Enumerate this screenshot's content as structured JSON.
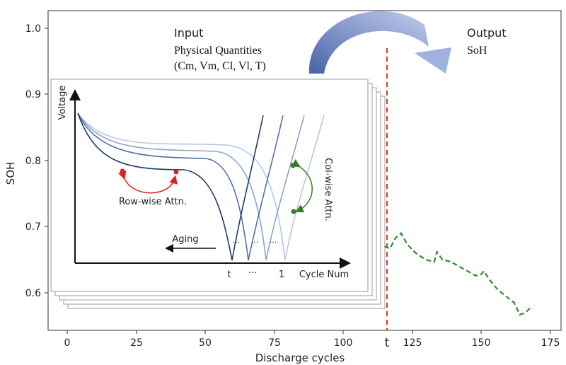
{
  "figure": {
    "outer_plot": {
      "ylabel": "SOH",
      "xlabel": "Discharge cycles",
      "y_ticks": [
        "0.6",
        "0.7",
        "0.8",
        "0.9",
        "1.0"
      ],
      "x_ticks": [
        "0",
        "25",
        "50",
        "75",
        "100",
        "125",
        "150",
        "175"
      ],
      "cutoff_label": "t"
    },
    "input_label": {
      "title": "Input",
      "line1": "Physical Quantities",
      "line2": "(Cm, Vm, Cl, Vl, T)"
    },
    "output_label": {
      "title": "Output",
      "line1": "SoH"
    },
    "inset": {
      "ylabel": "Voltage",
      "xlabel": "Cycle Num",
      "tick_t": "t",
      "tick_dots": "···",
      "tick_1": "1",
      "row_attn": "Row-wise Attn.",
      "col_attn": "Col-wise Attn.",
      "aging": "Aging",
      "curve_dots": "···"
    },
    "colors": {
      "prediction": "#2e8b2e",
      "cutoff": "#e03030",
      "row_attn": "#e02020",
      "col_attn": "#3a7a2a",
      "arrow": "#6f86c4"
    }
  },
  "chart_data": {
    "type": "line",
    "series": [
      {
        "x": [
          115,
          117,
          119,
          121,
          123,
          125,
          127,
          130,
          133,
          134,
          136,
          139,
          142,
          145,
          148,
          150,
          151,
          153,
          156,
          159,
          162,
          164,
          166,
          168
        ],
        "y": [
          0.67,
          0.667,
          0.683,
          0.69,
          0.675,
          0.665,
          0.658,
          0.65,
          0.647,
          0.662,
          0.65,
          0.647,
          0.64,
          0.633,
          0.626,
          0.628,
          0.633,
          0.62,
          0.605,
          0.595,
          0.585,
          0.567,
          0.57,
          0.578
        ]
      }
    ],
    "xlim": [
      -7,
      180
    ],
    "ylim": [
      0.55,
      1.05
    ],
    "xlabel": "Discharge cycles",
    "ylabel": "SOH"
  }
}
